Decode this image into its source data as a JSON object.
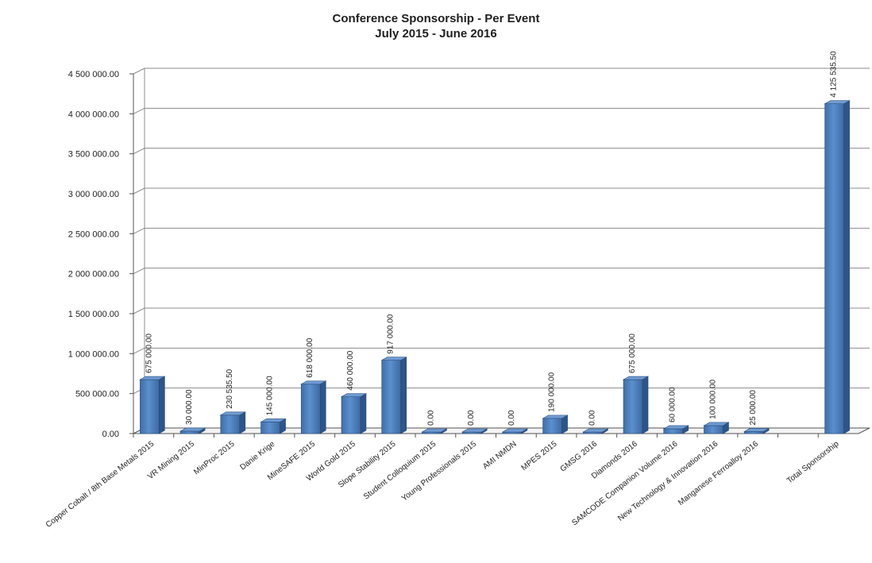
{
  "chart_data": {
    "type": "bar",
    "title": "Conference Sponsorship - Per Event",
    "subtitle": "July 2015 - June 2016",
    "xlabel": "",
    "ylabel": "",
    "ylim": [
      0,
      4500000
    ],
    "y_ticks": [
      {
        "value": 0,
        "label": "0.00"
      },
      {
        "value": 500000,
        "label": "500 000.00"
      },
      {
        "value": 1000000,
        "label": "1 000 000.00"
      },
      {
        "value": 1500000,
        "label": "1 500 000.00"
      },
      {
        "value": 2000000,
        "label": "2 000 000.00"
      },
      {
        "value": 2500000,
        "label": "2 500 000.00"
      },
      {
        "value": 3000000,
        "label": "3 000 000.00"
      },
      {
        "value": 3500000,
        "label": "3 500 000.00"
      },
      {
        "value": 4000000,
        "label": "4 000 000.00"
      },
      {
        "value": 4500000,
        "label": "4 500 000.00"
      }
    ],
    "grid": true,
    "legend": "none",
    "bar_color": "#4f81bd",
    "categories": [
      "Copper Cobalt / 8th Base Metals 2015",
      "VR Mining 2015",
      "MinProc 2015",
      "Danie Krige",
      "MineSAFE 2015",
      "World Gold 2015",
      "Slope Stability 2015",
      "Student Colloquium 2015",
      "Young Professionals 2015",
      "AMI NMDN",
      "MPES 2015",
      "GMSG 2016",
      "Diamonds 2016",
      "SAMCODE Companion Volume 2016",
      "New Technology & Innovation 2016",
      "Manganese Ferroalloy 2016",
      "",
      "Total Sponsorship"
    ],
    "values": [
      675000,
      30000,
      230535.5,
      145000,
      618000,
      460000,
      917000,
      0,
      0,
      0,
      190000,
      0,
      675000,
      60000,
      100000,
      25000,
      null,
      4125535.5
    ],
    "data_labels": [
      "675 000.00",
      "30 000.00",
      "230 535.50",
      "145 000.00",
      "618 000.00",
      "460 000.00",
      "917 000.00",
      "0.00",
      "0.00",
      "0.00",
      "190 000.00",
      "0.00",
      "675 000.00",
      "60 000.00",
      "100 000.00",
      "25 000.00",
      "",
      "4 125 535.50"
    ]
  }
}
